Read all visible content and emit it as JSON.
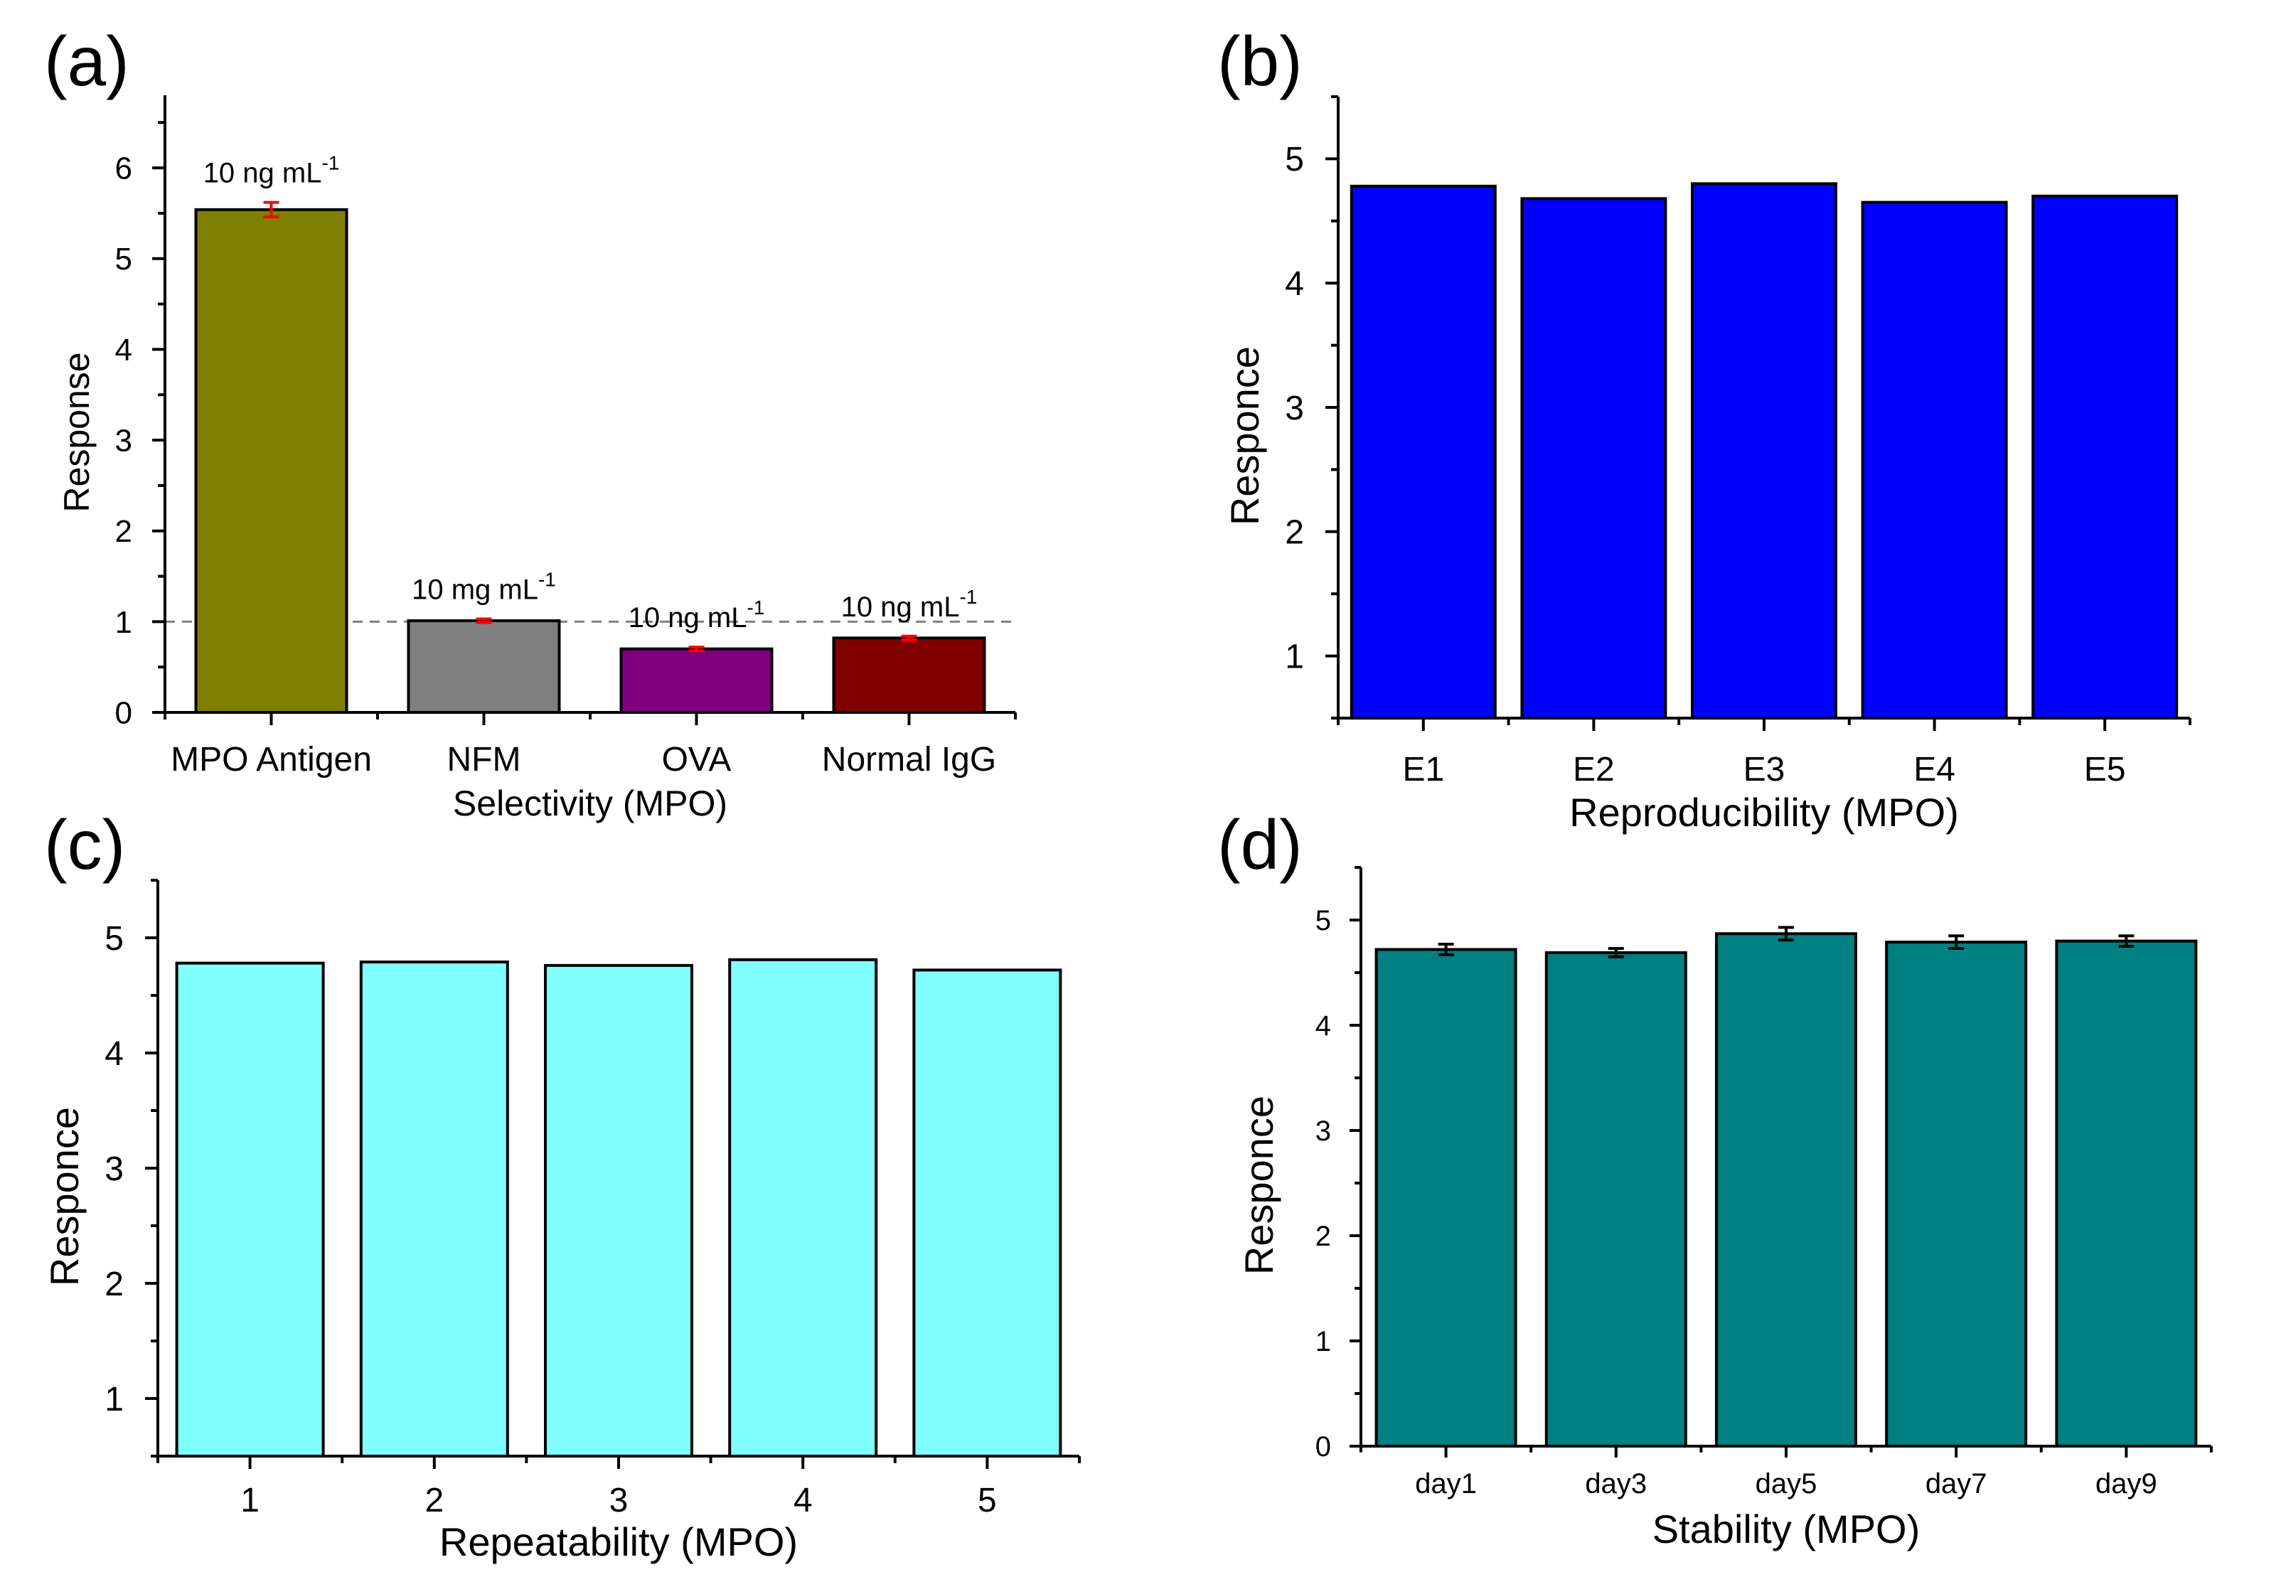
{
  "chart_data": [
    {
      "panel": "(a)",
      "type": "bar",
      "categories": [
        "MPO Antigen",
        "NFM",
        "OVA",
        "Normal IgG"
      ],
      "values": [
        5.54,
        1.01,
        0.7,
        0.82
      ],
      "errors": [
        0.08,
        0.02,
        0.02,
        0.02
      ],
      "colors": [
        "#808000",
        "#808080",
        "#800080",
        "#800000"
      ],
      "error_color": "#ff0000",
      "bar_labels": [
        {
          "text": "10 ng mL",
          "sup": "-1"
        },
        {
          "text": "10 mg mL",
          "sup": "-1"
        },
        {
          "text": "10 ng mL",
          "sup": "-1"
        },
        {
          "text": "10 ng mL",
          "sup": "-1"
        }
      ],
      "reference_line": 1,
      "xlabel": "Selectivity (MPO)",
      "ylabel": "Response",
      "ylim": [
        0,
        6.8
      ],
      "yticks": [
        0,
        1,
        2,
        3,
        4,
        5,
        6
      ],
      "ytick_labels": [
        "0",
        "1",
        "2",
        "3",
        "4",
        "5",
        "6"
      ]
    },
    {
      "panel": "(b)",
      "type": "bar",
      "categories": [
        "E1",
        "E2",
        "E3",
        "E4",
        "E5"
      ],
      "values": [
        4.78,
        4.68,
        4.8,
        4.65,
        4.7
      ],
      "colors": [
        "#0000ff",
        "#0000ff",
        "#0000ff",
        "#0000ff",
        "#0000ff"
      ],
      "xlabel": "Reproducibility (MPO)",
      "ylabel": "Responce",
      "ylim": [
        0.5,
        5.5
      ],
      "yticks": [
        1,
        2,
        3,
        4,
        5
      ],
      "ytick_labels": [
        "1",
        "2",
        "3",
        "4",
        "5"
      ]
    },
    {
      "panel": "(c)",
      "type": "bar",
      "categories": [
        "1",
        "2",
        "3",
        "4",
        "5"
      ],
      "values": [
        4.78,
        4.79,
        4.76,
        4.81,
        4.72
      ],
      "colors": [
        "#80ffff",
        "#80ffff",
        "#80ffff",
        "#80ffff",
        "#80ffff"
      ],
      "xlabel": "Repeatability (MPO)",
      "ylabel": "Responce",
      "ylim": [
        0.5,
        5.5
      ],
      "yticks": [
        1,
        2,
        3,
        4,
        5
      ],
      "ytick_labels": [
        "1",
        "2",
        "3",
        "4",
        "5"
      ]
    },
    {
      "panel": "(d)",
      "type": "bar",
      "categories": [
        "day1",
        "day3",
        "day5",
        "day7",
        "day9"
      ],
      "values": [
        4.72,
        4.69,
        4.87,
        4.79,
        4.8
      ],
      "errors": [
        0.05,
        0.04,
        0.06,
        0.06,
        0.05
      ],
      "colors": [
        "#008080",
        "#008080",
        "#008080",
        "#008080",
        "#008080"
      ],
      "error_color": "#000000",
      "xlabel": "Stability (MPO)",
      "ylabel": "Responce",
      "ylim": [
        0,
        5.5
      ],
      "yticks": [
        0,
        1,
        2,
        3,
        4,
        5
      ],
      "ytick_labels": [
        "0",
        "1",
        "2",
        "3",
        "4",
        "5"
      ]
    }
  ]
}
